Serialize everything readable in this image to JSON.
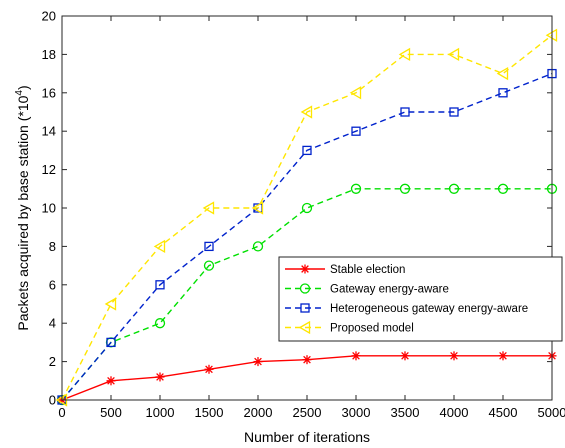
{
  "chart_data": {
    "type": "line",
    "title": "",
    "xlabel": "Number of iterations",
    "ylabel": "Packets acquired by base station (*10",
    "ylabel_sup": "4",
    "ylabel_close": ")",
    "xlim": [
      0,
      5000
    ],
    "ylim": [
      0,
      20
    ],
    "x": [
      0,
      500,
      1000,
      1500,
      2000,
      2500,
      3000,
      3500,
      4000,
      4500,
      5000
    ],
    "xticks": [
      0,
      500,
      1000,
      1500,
      2000,
      2500,
      3000,
      3500,
      4000,
      4500,
      5000
    ],
    "yticks": [
      0,
      2,
      4,
      6,
      8,
      10,
      12,
      14,
      16,
      18,
      20
    ],
    "grid": false,
    "legend_position": "center-right",
    "series": [
      {
        "name": "Stable election",
        "color": "#ff0000",
        "line_style": "solid",
        "marker": "asterisk",
        "values": [
          0,
          1,
          1.2,
          1.6,
          2,
          2.1,
          2.3,
          2.3,
          2.3,
          2.3,
          2.3
        ]
      },
      {
        "name": "Gateway energy-aware",
        "color": "#00e000",
        "line_style": "dashed",
        "marker": "circle",
        "values": [
          0,
          3,
          4,
          7,
          8,
          10,
          11,
          11,
          11,
          11,
          11
        ]
      },
      {
        "name": "Heterogeneous gateway energy-aware",
        "color": "#0022cc",
        "line_style": "dashed",
        "marker": "square",
        "values": [
          0,
          3,
          6,
          8,
          10,
          13,
          14,
          15,
          15,
          16,
          17
        ]
      },
      {
        "name": "Proposed model",
        "color": "#ffe600",
        "line_style": "dashed",
        "marker": "triangle-left",
        "values": [
          0,
          5,
          8,
          10,
          10,
          15,
          16,
          18,
          18,
          17,
          19
        ]
      }
    ]
  }
}
